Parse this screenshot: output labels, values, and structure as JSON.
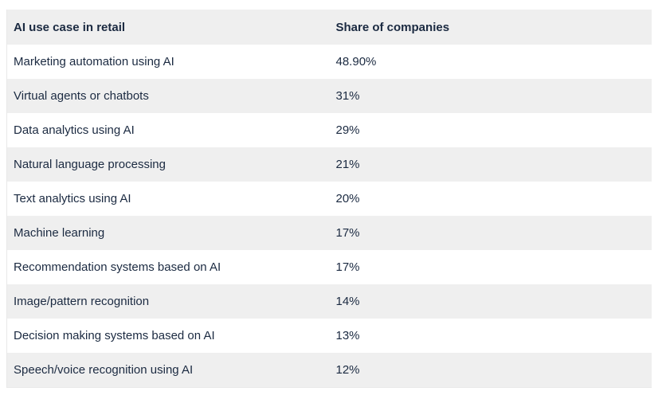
{
  "table": {
    "columns": [
      {
        "key": "use_case",
        "label": "AI use case in retail"
      },
      {
        "key": "share",
        "label": "Share of companies"
      }
    ],
    "rows": [
      {
        "use_case": "Marketing automation using AI",
        "share": "48.90%"
      },
      {
        "use_case": "Virtual agents or chatbots",
        "share": "31%"
      },
      {
        "use_case": "Data analytics using AI",
        "share": "29%"
      },
      {
        "use_case": "Natural language processing",
        "share": "21%"
      },
      {
        "use_case": "Text analytics using AI",
        "share": "20%"
      },
      {
        "use_case": "Machine learning",
        "share": "17%"
      },
      {
        "use_case": "Recommendation systems based on AI",
        "share": "17%"
      },
      {
        "use_case": "Image/pattern recognition",
        "share": "14%"
      },
      {
        "use_case": "Decision making systems based on AI",
        "share": "13%"
      },
      {
        "use_case": "Speech/voice recognition using AI",
        "share": "12%"
      }
    ]
  },
  "colors": {
    "stripe": "#efefef",
    "row_white": "#ffffff",
    "text": "#1b2a41",
    "border": "#e8e8e8",
    "background": "#ffffff"
  },
  "chart_data": {
    "type": "table",
    "title": "AI use case in retail — Share of companies",
    "categories": [
      "Marketing automation using AI",
      "Virtual agents or chatbots",
      "Data analytics using AI",
      "Natural language processing",
      "Text analytics using AI",
      "Machine learning",
      "Recommendation systems based on AI",
      "Image/pattern recognition",
      "Decision making systems based on AI",
      "Speech/voice recognition using AI"
    ],
    "values": [
      48.9,
      31,
      29,
      21,
      20,
      17,
      17,
      14,
      13,
      12
    ],
    "value_labels": [
      "48.90%",
      "31%",
      "29%",
      "21%",
      "20%",
      "17%",
      "17%",
      "14%",
      "13%",
      "12%"
    ],
    "xlabel": "AI use case in retail",
    "ylabel": "Share of companies",
    "legend": [],
    "grid": false,
    "layout": "two-column striped table, header row gray, alternating row stripes"
  }
}
